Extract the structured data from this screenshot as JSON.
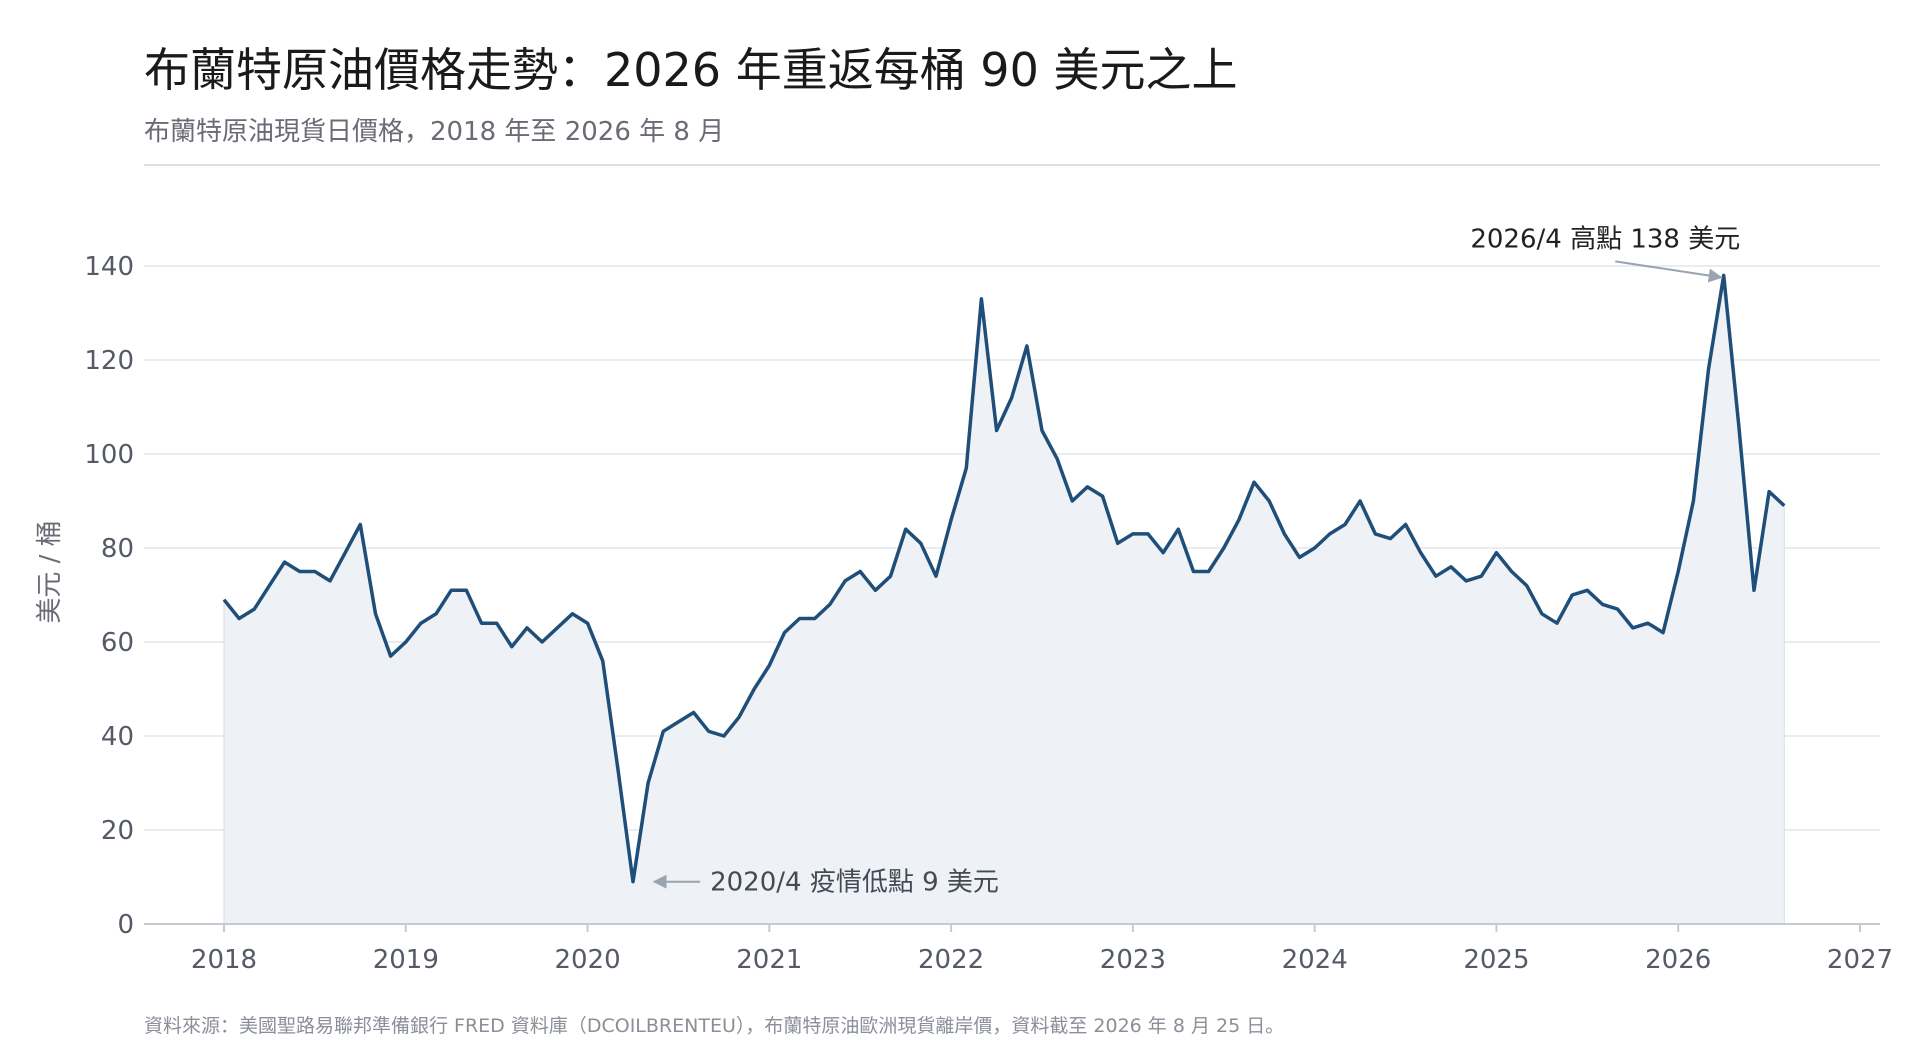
{
  "chart_data": {
    "type": "line",
    "title": "布蘭特原油價格走勢：2026 年重返每桶 90 美元之上",
    "subtitle": "布蘭特原油現貨日價格，2018 年至 2026 年 8 月",
    "ylabel": "美元 / 桶",
    "xlabel": "",
    "ylim": [
      0,
      140
    ],
    "xlim": [
      2018,
      2027
    ],
    "yticks": [
      0,
      20,
      40,
      60,
      80,
      100,
      120,
      140
    ],
    "xticks": [
      "2018",
      "2019",
      "2020",
      "2021",
      "2022",
      "2023",
      "2024",
      "2025",
      "2026",
      "2027"
    ],
    "grid": true,
    "source": "資料來源：美國聖路易聯邦準備銀行 FRED 資料庫（DCOILBRENTEU），布蘭特原油歐洲現貨離岸價，資料截至 2026 年 8 月 25 日。",
    "colors": {
      "line": "#1f4e79",
      "fill": "#eef1f6",
      "grid": "#e3e6ec",
      "axis": "#c5cad3",
      "arrow": "#9aa3b0"
    },
    "annotations": [
      {
        "text": "2026/4 高點 138 美元",
        "x": 2026.27,
        "y": 138
      },
      {
        "text": "2020/4 疫情低點 9 美元",
        "x": 2020.3,
        "y": 9
      }
    ],
    "series": [
      {
        "name": "",
        "x": [
          "2018-01",
          "2018-02",
          "2018-03",
          "2018-04",
          "2018-05",
          "2018-06",
          "2018-07",
          "2018-08",
          "2018-09",
          "2018-10",
          "2018-11",
          "2018-12",
          "2019-01",
          "2019-02",
          "2019-03",
          "2019-04",
          "2019-05",
          "2019-06",
          "2019-07",
          "2019-08",
          "2019-09",
          "2019-10",
          "2019-11",
          "2019-12",
          "2020-01",
          "2020-02",
          "2020-03",
          "2020-04",
          "2020-05",
          "2020-06",
          "2020-07",
          "2020-08",
          "2020-09",
          "2020-10",
          "2020-11",
          "2020-12",
          "2021-01",
          "2021-02",
          "2021-03",
          "2021-04",
          "2021-05",
          "2021-06",
          "2021-07",
          "2021-08",
          "2021-09",
          "2021-10",
          "2021-11",
          "2021-12",
          "2022-01",
          "2022-02",
          "2022-03",
          "2022-04",
          "2022-05",
          "2022-06",
          "2022-07",
          "2022-08",
          "2022-09",
          "2022-10",
          "2022-11",
          "2022-12",
          "2023-01",
          "2023-02",
          "2023-03",
          "2023-04",
          "2023-05",
          "2023-06",
          "2023-07",
          "2023-08",
          "2023-09",
          "2023-10",
          "2023-11",
          "2023-12",
          "2024-01",
          "2024-02",
          "2024-03",
          "2024-04",
          "2024-05",
          "2024-06",
          "2024-07",
          "2024-08",
          "2024-09",
          "2024-10",
          "2024-11",
          "2024-12",
          "2025-01",
          "2025-02",
          "2025-03",
          "2025-04",
          "2025-05",
          "2025-06",
          "2025-07",
          "2025-08",
          "2025-09",
          "2025-10",
          "2025-11",
          "2025-12",
          "2026-01",
          "2026-02",
          "2026-03",
          "2026-04",
          "2026-05",
          "2026-06",
          "2026-07",
          "2026-08"
        ],
        "values": [
          69,
          65,
          67,
          72,
          77,
          75,
          75,
          73,
          79,
          85,
          66,
          57,
          60,
          64,
          66,
          71,
          71,
          64,
          64,
          59,
          63,
          60,
          63,
          66,
          64,
          56,
          33,
          9,
          30,
          41,
          43,
          45,
          41,
          40,
          44,
          50,
          55,
          62,
          65,
          65,
          68,
          73,
          75,
          71,
          74,
          84,
          81,
          74,
          86,
          97,
          133,
          105,
          112,
          123,
          105,
          99,
          90,
          93,
          91,
          81,
          83,
          83,
          79,
          84,
          75,
          75,
          80,
          86,
          94,
          90,
          83,
          78,
          80,
          83,
          85,
          90,
          83,
          82,
          85,
          79,
          74,
          76,
          73,
          74,
          79,
          75,
          72,
          66,
          64,
          70,
          71,
          68,
          67,
          63,
          64,
          62,
          75,
          90,
          118,
          138,
          106,
          71,
          92,
          89
        ]
      }
    ]
  }
}
